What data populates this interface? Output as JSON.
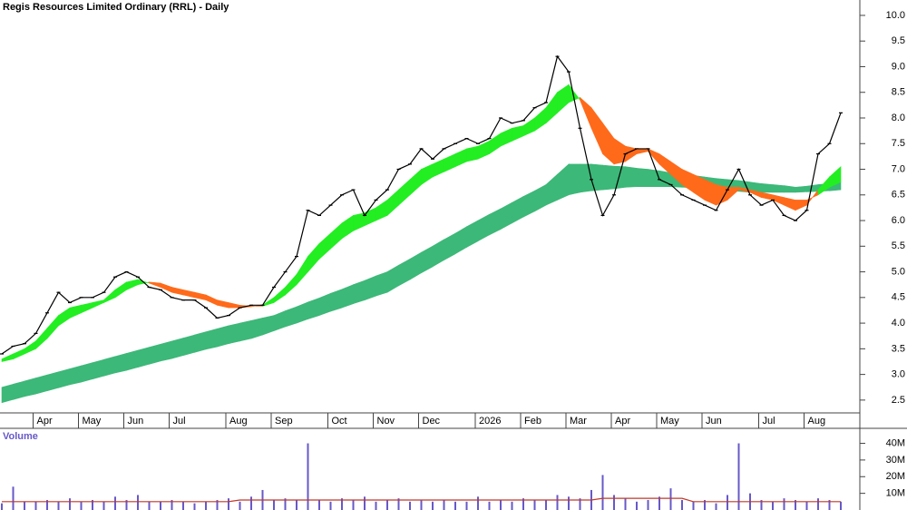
{
  "chart_data": [
    {
      "type": "line",
      "title": "Regis Resources Limited Ordinary (RRL) - Daily",
      "categories": [
        null,
        null,
        null,
        "Apr",
        null,
        null,
        null,
        "May",
        null,
        null,
        null,
        "Jun",
        null,
        null,
        null,
        "Jul",
        null,
        null,
        null,
        null,
        "Aug",
        null,
        null,
        null,
        "Sep",
        null,
        null,
        null,
        null,
        "Oct",
        null,
        null,
        null,
        "Nov",
        null,
        null,
        null,
        "Dec",
        null,
        null,
        null,
        null,
        "2026",
        null,
        null,
        null,
        "Feb",
        null,
        null,
        null,
        "Mar",
        null,
        null,
        null,
        "Apr",
        null,
        null,
        null,
        "May",
        null,
        null,
        null,
        "Jun",
        null,
        null,
        null,
        null,
        "Jul",
        null,
        null,
        null,
        "Aug",
        null,
        null,
        null
      ],
      "values": [
        3.4,
        3.55,
        3.6,
        3.8,
        4.2,
        4.6,
        4.4,
        4.5,
        4.5,
        4.6,
        4.9,
        5.0,
        4.9,
        4.7,
        4.65,
        4.5,
        4.45,
        4.45,
        4.3,
        4.1,
        4.15,
        4.3,
        4.35,
        4.35,
        4.7,
        5.0,
        5.3,
        6.2,
        6.1,
        6.3,
        6.5,
        6.6,
        6.1,
        6.4,
        6.6,
        7.0,
        7.1,
        7.4,
        7.2,
        7.4,
        7.5,
        7.6,
        7.5,
        7.6,
        8.0,
        7.9,
        7.95,
        8.2,
        8.3,
        9.2,
        8.9,
        7.8,
        6.8,
        6.1,
        6.5,
        7.3,
        7.4,
        7.4,
        6.8,
        6.7,
        6.5,
        6.4,
        6.3,
        6.2,
        6.6,
        7.0,
        6.5,
        6.3,
        6.4,
        6.1,
        6.0,
        6.2,
        7.3,
        7.5,
        8.1
      ],
      "color": "#000000",
      "ribbons": [
        {
          "fast": [
            2.75,
            2.81,
            2.87,
            2.93,
            2.99,
            3.05,
            3.11,
            3.17,
            3.23,
            3.29,
            3.35,
            3.41,
            3.47,
            3.53,
            3.59,
            3.65,
            3.71,
            3.77,
            3.83,
            3.89,
            3.95,
            4.0,
            4.05,
            4.1,
            4.15,
            4.24,
            4.32,
            4.41,
            4.49,
            4.58,
            4.66,
            4.75,
            4.83,
            4.92,
            5.0,
            5.13,
            5.25,
            5.38,
            5.5,
            5.63,
            5.75,
            5.88,
            6.0,
            6.12,
            6.23,
            6.35,
            6.47,
            6.58,
            6.7,
            6.9,
            7.1,
            7.1,
            7.1,
            7.08,
            7.06,
            7.05,
            7.02,
            7.0,
            6.97,
            6.93,
            6.9,
            6.88,
            6.85,
            6.82,
            6.8,
            6.78,
            6.75,
            6.72,
            6.7,
            6.68,
            6.65,
            6.67,
            6.7,
            6.72,
            6.75
          ],
          "slow": [
            2.45,
            2.51,
            2.57,
            2.62,
            2.68,
            2.74,
            2.8,
            2.85,
            2.91,
            2.97,
            3.03,
            3.08,
            3.14,
            3.2,
            3.26,
            3.31,
            3.37,
            3.43,
            3.49,
            3.54,
            3.6,
            3.65,
            3.7,
            3.77,
            3.85,
            3.93,
            4.0,
            4.08,
            4.15,
            4.23,
            4.3,
            4.38,
            4.45,
            4.53,
            4.6,
            4.73,
            4.85,
            4.98,
            5.1,
            5.23,
            5.35,
            5.48,
            5.6,
            5.72,
            5.83,
            5.95,
            6.07,
            6.18,
            6.3,
            6.4,
            6.5,
            6.55,
            6.58,
            6.6,
            6.62,
            6.65,
            6.66,
            6.66,
            6.66,
            6.66,
            6.65,
            6.64,
            6.62,
            6.6,
            6.58,
            6.57,
            6.55,
            6.55,
            6.55,
            6.55,
            6.55,
            6.56,
            6.57,
            6.58,
            6.6
          ],
          "color": "#3cb878",
          "cross_color": "#ff6a1a"
        },
        {
          "fast": [
            3.3,
            3.4,
            3.5,
            3.65,
            3.9,
            4.15,
            4.3,
            4.35,
            4.4,
            4.45,
            4.65,
            4.8,
            4.85,
            4.78,
            4.7,
            4.6,
            4.55,
            4.5,
            4.45,
            4.35,
            4.3,
            4.3,
            4.32,
            4.35,
            4.5,
            4.7,
            4.95,
            5.3,
            5.55,
            5.75,
            5.95,
            6.1,
            6.15,
            6.25,
            6.4,
            6.6,
            6.8,
            7.0,
            7.1,
            7.2,
            7.3,
            7.4,
            7.45,
            7.55,
            7.7,
            7.8,
            7.85,
            8.0,
            8.2,
            8.5,
            8.65,
            8.35,
            7.8,
            7.3,
            7.1,
            7.15,
            7.3,
            7.35,
            7.1,
            6.9,
            6.7,
            6.55,
            6.4,
            6.3,
            6.4,
            6.6,
            6.55,
            6.45,
            6.4,
            6.3,
            6.2,
            6.3,
            6.6,
            6.85,
            7.05
          ],
          "slow": [
            3.25,
            3.3,
            3.4,
            3.5,
            3.7,
            3.95,
            4.1,
            4.2,
            4.3,
            4.4,
            4.5,
            4.65,
            4.75,
            4.8,
            4.78,
            4.7,
            4.65,
            4.6,
            4.55,
            4.45,
            4.4,
            4.35,
            4.33,
            4.33,
            4.4,
            4.55,
            4.75,
            5.0,
            5.25,
            5.45,
            5.65,
            5.8,
            5.9,
            6.0,
            6.1,
            6.3,
            6.5,
            6.7,
            6.85,
            6.95,
            7.05,
            7.15,
            7.2,
            7.3,
            7.45,
            7.55,
            7.65,
            7.75,
            7.9,
            8.1,
            8.3,
            8.4,
            8.2,
            7.9,
            7.6,
            7.45,
            7.4,
            7.4,
            7.3,
            7.15,
            7.0,
            6.9,
            6.8,
            6.7,
            6.65,
            6.65,
            6.6,
            6.55,
            6.5,
            6.45,
            6.4,
            6.4,
            6.5,
            6.65,
            6.75
          ],
          "color": "#22ee22",
          "cross_color": "#ff6a1a"
        }
      ],
      "ylim": [
        2.25,
        10.3
      ],
      "yticks": [
        2.5,
        {
          "value": 3,
          "label": "3.0"
        },
        3.5,
        {
          "value": 4,
          "label": "4.0"
        },
        4.5,
        {
          "value": 5,
          "label": "5.0"
        },
        5.5,
        {
          "value": 6,
          "label": "6.0"
        },
        6.5,
        {
          "value": 7,
          "label": "7.0"
        },
        7.5,
        {
          "value": 8,
          "label": "8.0"
        },
        8.5,
        {
          "value": 9,
          "label": "9.0"
        },
        9.5,
        {
          "value": 10,
          "label": "10.0"
        }
      ]
    },
    {
      "type": "bar",
      "title": "Volume",
      "values": [
        4,
        14,
        5,
        5,
        6,
        5,
        7,
        5,
        6,
        5,
        8,
        6,
        9,
        5,
        5,
        6,
        5,
        4,
        5,
        6,
        7,
        5,
        8,
        12,
        6,
        7,
        6,
        40,
        6,
        5,
        7,
        6,
        8,
        5,
        6,
        7,
        5,
        6,
        5,
        6,
        5,
        5,
        8,
        5,
        6,
        5,
        7,
        6,
        6,
        9,
        8,
        7,
        12,
        21,
        9,
        7,
        5,
        6,
        8,
        13,
        6,
        5,
        6,
        4,
        9,
        40,
        10,
        6,
        5,
        7,
        6,
        5,
        7,
        6,
        5
      ],
      "color": "#6659c9",
      "average": [
        5,
        5,
        5,
        5,
        5,
        5,
        5,
        5,
        5,
        5,
        5,
        5,
        5,
        5,
        5,
        5,
        5,
        5,
        5,
        5,
        5,
        6,
        6,
        6,
        6,
        6,
        6,
        6,
        6,
        6,
        6,
        6,
        6,
        6,
        6,
        6,
        6,
        6,
        6,
        6,
        6,
        6,
        6,
        6,
        6,
        6,
        6,
        6,
        6,
        6,
        6,
        6,
        6,
        7,
        7,
        7,
        7,
        7,
        7,
        7,
        7,
        5,
        5,
        5,
        5,
        5,
        5,
        5,
        5,
        5,
        5,
        5,
        5,
        5,
        5
      ],
      "average_color": "#c0392b",
      "ylim": [
        0,
        49
      ],
      "yticks": [
        {
          "value": 10,
          "label": "10M"
        },
        {
          "value": 20,
          "label": "20M"
        },
        {
          "value": 30,
          "label": "30M"
        },
        {
          "value": 40,
          "label": "40M"
        }
      ]
    }
  ]
}
